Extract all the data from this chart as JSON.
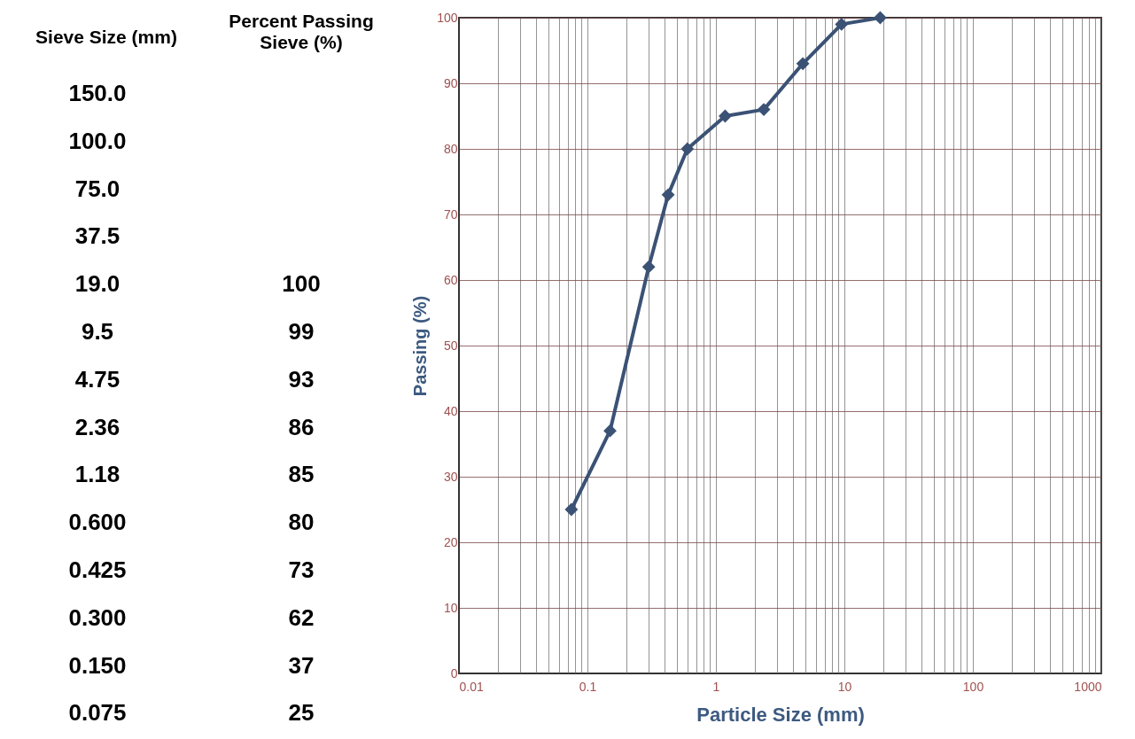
{
  "chart_data": {
    "type": "line",
    "xlabel": "Particle Size (mm)",
    "ylabel": "Passing (%)",
    "annotations": [
      "Sieve Size (mm)",
      "Percent Passing Sieve (%)",
      "150.0",
      "100.0",
      "75.0",
      "37.5",
      "19.0",
      "9.5",
      "4.75",
      "2.36",
      "1.18",
      "0.600",
      "0.425",
      "0.300",
      "0.150",
      "0.075",
      "100",
      "99",
      "93",
      "86",
      "85",
      "80",
      "73",
      "62",
      "37",
      "25"
    ],
    "x": [
      19,
      9.5,
      4.75,
      2.36,
      1.18,
      0.6,
      0.425,
      0.3,
      0.15,
      0.075
    ],
    "values": [
      100,
      99,
      93,
      86,
      85,
      80,
      73,
      62,
      37,
      25
    ],
    "color": "#3b5275",
    "marker": "diamond",
    "line_style": "solid",
    "log": "x",
    "grid": true,
    "xlim": [
      0.01,
      1000
    ],
    "ylim": [
      0,
      100
    ],
    "xticks": [
      0.01,
      {
        "value": 0.02,
        "label": null
      },
      {
        "value": 0.03,
        "label": null
      },
      {
        "value": 0.04,
        "label": null
      },
      {
        "value": 0.05,
        "label": null
      },
      {
        "value": 0.06,
        "label": null
      },
      {
        "value": 0.07,
        "label": null
      },
      {
        "value": 0.08,
        "label": null
      },
      {
        "value": 0.09,
        "label": null
      },
      0.1,
      {
        "value": 0.2,
        "label": null
      },
      {
        "value": 0.3,
        "label": null
      },
      {
        "value": 0.4,
        "label": null
      },
      {
        "value": 0.5,
        "label": null
      },
      {
        "value": 0.6,
        "label": null
      },
      {
        "value": 0.7,
        "label": null
      },
      {
        "value": 0.8,
        "label": null
      },
      {
        "value": 0.9,
        "label": null
      },
      1,
      {
        "value": 2,
        "label": null
      },
      {
        "value": 3,
        "label": null
      },
      {
        "value": 4,
        "label": null
      },
      {
        "value": 5,
        "label": null
      },
      {
        "value": 6,
        "label": null
      },
      {
        "value": 7,
        "label": null
      },
      {
        "value": 8,
        "label": null
      },
      {
        "value": 9,
        "label": null
      },
      10,
      {
        "value": 20,
        "label": null
      },
      {
        "value": 30,
        "label": null
      },
      {
        "value": 40,
        "label": null
      },
      {
        "value": 50,
        "label": null
      },
      {
        "value": 60,
        "label": null
      },
      {
        "value": 70,
        "label": null
      },
      {
        "value": 80,
        "label": null
      },
      {
        "value": 90,
        "label": null
      },
      100,
      {
        "value": 200,
        "label": null
      },
      {
        "value": 300,
        "label": null
      },
      {
        "value": 400,
        "label": null
      },
      {
        "value": 500,
        "label": null
      },
      {
        "value": 600,
        "label": null
      },
      {
        "value": 700,
        "label": null
      },
      {
        "value": 800,
        "label": null
      },
      {
        "value": 900,
        "label": null
      },
      1000
    ],
    "yticks": [
      0,
      10,
      20,
      30,
      40,
      50,
      60,
      70,
      80,
      90,
      100
    ]
  }
}
